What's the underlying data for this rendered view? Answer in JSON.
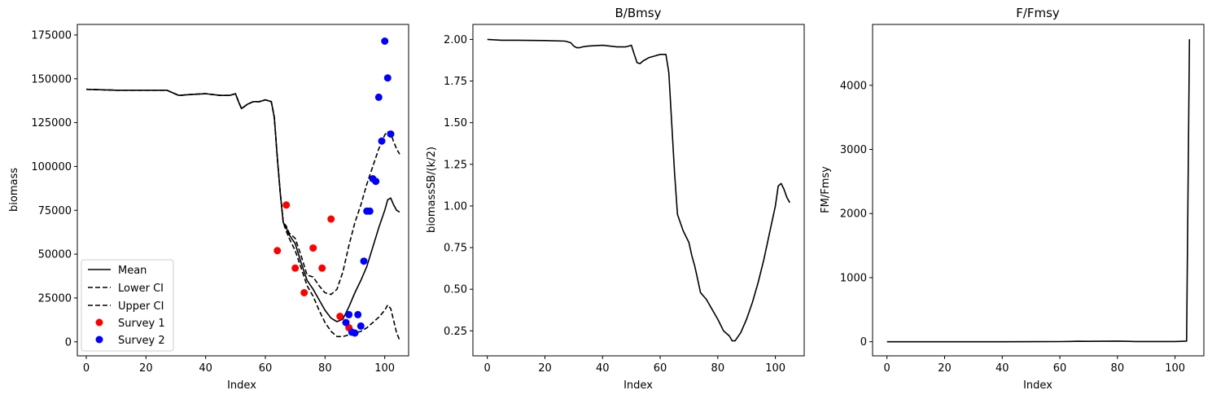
{
  "chart_data": [
    {
      "type": "line",
      "title": "",
      "xlabel": "Index",
      "ylabel": "biomass",
      "xlim": [
        -3,
        108
      ],
      "ylim": [
        -8000,
        181000
      ],
      "xticks": [
        0,
        20,
        40,
        60,
        80,
        100
      ],
      "yticks": [
        0,
        25000,
        50000,
        75000,
        100000,
        125000,
        150000,
        175000
      ],
      "legend_position": "lower-left",
      "series": [
        {
          "name": "Mean",
          "kind": "line",
          "style": "solid",
          "color": "#000000",
          "x": [
            0,
            10,
            20,
            27,
            29,
            31,
            35,
            40,
            45,
            48,
            50,
            51,
            52,
            54,
            56,
            58,
            60,
            62,
            63,
            64,
            65,
            66,
            67,
            68,
            70,
            72,
            74,
            76,
            78,
            80,
            82,
            84,
            86,
            88,
            90,
            92,
            94,
            96,
            98,
            100,
            101,
            102,
            103,
            104,
            105
          ],
          "y": [
            144000,
            143500,
            143500,
            143500,
            142000,
            140500,
            141000,
            141500,
            140500,
            140500,
            141500,
            137000,
            133000,
            135500,
            137000,
            137000,
            138000,
            137000,
            128000,
            105000,
            85000,
            68000,
            65000,
            61000,
            56000,
            45000,
            35000,
            30000,
            24000,
            18000,
            13500,
            11500,
            13000,
            20000,
            28000,
            35000,
            43000,
            54000,
            65000,
            75000,
            81000,
            82000,
            78000,
            75000,
            74000
          ]
        },
        {
          "name": "Lower CI",
          "kind": "line",
          "style": "dashed",
          "color": "#000000",
          "x": [
            0,
            10,
            20,
            27,
            29,
            31,
            35,
            40,
            45,
            48,
            50,
            51,
            52,
            54,
            56,
            58,
            60,
            62,
            63,
            64,
            65,
            66,
            67,
            68,
            70,
            72,
            74,
            76,
            78,
            80,
            82,
            84,
            86,
            88,
            90,
            92,
            94,
            96,
            98,
            100,
            101,
            102,
            103,
            104,
            105
          ],
          "y": [
            144000,
            143500,
            143500,
            143500,
            142000,
            140500,
            141000,
            141500,
            140500,
            140500,
            141500,
            137000,
            133000,
            135500,
            137000,
            137000,
            138000,
            137000,
            128000,
            105000,
            85000,
            68000,
            63000,
            59000,
            52000,
            42000,
            32000,
            26000,
            18000,
            11000,
            6000,
            3000,
            3000,
            4000,
            5000,
            6000,
            8000,
            11000,
            14000,
            18000,
            21000,
            19000,
            12000,
            5000,
            1000
          ]
        },
        {
          "name": "Upper CI",
          "kind": "line",
          "style": "dashed",
          "color": "#000000",
          "x": [
            0,
            10,
            20,
            27,
            29,
            31,
            35,
            40,
            45,
            48,
            50,
            51,
            52,
            54,
            56,
            58,
            60,
            62,
            63,
            64,
            65,
            66,
            67,
            68,
            70,
            72,
            74,
            76,
            78,
            80,
            82,
            84,
            86,
            88,
            90,
            92,
            94,
            96,
            98,
            100,
            101,
            102,
            103,
            104,
            105
          ],
          "y": [
            144000,
            143500,
            143500,
            143500,
            142000,
            140500,
            141000,
            141500,
            140500,
            140500,
            141500,
            137000,
            133000,
            135500,
            137000,
            137000,
            138000,
            137000,
            128000,
            105000,
            85000,
            68000,
            66000,
            62000,
            59000,
            49000,
            38000,
            37000,
            32000,
            28000,
            27000,
            30000,
            40000,
            55000,
            68000,
            78000,
            90000,
            100000,
            110000,
            118000,
            120000,
            119000,
            114000,
            110000,
            107000
          ]
        },
        {
          "name": "Survey 1",
          "kind": "scatter",
          "color": "#ff0000",
          "x": [
            64,
            67,
            70,
            73,
            76,
            79,
            82,
            85,
            88
          ],
          "y": [
            52000,
            78000,
            42000,
            28000,
            53500,
            42000,
            70000,
            14500,
            8000
          ]
        },
        {
          "name": "Survey 2",
          "kind": "scatter",
          "color": "#0000ff",
          "x": [
            87,
            88,
            89,
            90,
            91,
            92,
            93,
            94,
            95,
            96,
            97,
            98,
            99,
            100,
            101,
            102
          ],
          "y": [
            11000,
            15500,
            5500,
            5000,
            15500,
            9000,
            46000,
            74500,
            74500,
            93000,
            91500,
            139500,
            114500,
            171500,
            150500,
            118500
          ]
        }
      ]
    },
    {
      "type": "line",
      "title": "B/Bmsy",
      "xlabel": "Index",
      "ylabel": "biomassSB/(k/2)",
      "xlim": [
        -5,
        110
      ],
      "ylim": [
        0.1,
        2.09
      ],
      "xticks": [
        0,
        20,
        40,
        60,
        80,
        100
      ],
      "yticks": [
        0.25,
        0.5,
        0.75,
        1.0,
        1.25,
        1.5,
        1.75,
        2.0
      ],
      "series": [
        {
          "name": "",
          "kind": "line",
          "style": "solid",
          "color": "#000000",
          "x": [
            0,
            5,
            10,
            20,
            27,
            29,
            30,
            31,
            32,
            33,
            35,
            40,
            45,
            48,
            50,
            51,
            52,
            53,
            54,
            56,
            58,
            60,
            62,
            63,
            64,
            65,
            66,
            67,
            68,
            70,
            71,
            72,
            73,
            74,
            75,
            76,
            78,
            80,
            82,
            84,
            85,
            86,
            88,
            90,
            92,
            94,
            96,
            98,
            100,
            101,
            102,
            103,
            104,
            105
          ],
          "y": [
            2.0,
            1.995,
            1.995,
            1.993,
            1.99,
            1.98,
            1.96,
            1.95,
            1.95,
            1.955,
            1.96,
            1.965,
            1.955,
            1.955,
            1.965,
            1.91,
            1.86,
            1.855,
            1.87,
            1.89,
            1.9,
            1.91,
            1.91,
            1.8,
            1.5,
            1.2,
            0.95,
            0.9,
            0.85,
            0.78,
            0.7,
            0.64,
            0.56,
            0.48,
            0.46,
            0.44,
            0.38,
            0.32,
            0.25,
            0.22,
            0.19,
            0.19,
            0.24,
            0.32,
            0.42,
            0.54,
            0.68,
            0.84,
            1.0,
            1.12,
            1.135,
            1.1,
            1.05,
            1.02
          ]
        }
      ]
    },
    {
      "type": "line",
      "title": "F/Fmsy",
      "xlabel": "Index",
      "ylabel": "FM/Fmsy",
      "xlim": [
        -5,
        110
      ],
      "ylim": [
        -220,
        4950
      ],
      "xticks": [
        0,
        20,
        40,
        60,
        80,
        100
      ],
      "yticks": [
        0,
        1000,
        2000,
        3000,
        4000
      ],
      "series": [
        {
          "name": "",
          "kind": "line",
          "style": "solid",
          "color": "#000000",
          "x": [
            0,
            20,
            40,
            60,
            64,
            66,
            70,
            80,
            84,
            86,
            100,
            104,
            105
          ],
          "y": [
            0,
            0,
            0,
            2,
            5,
            8,
            6,
            10,
            6,
            3,
            3,
            10,
            4720
          ]
        }
      ]
    }
  ]
}
